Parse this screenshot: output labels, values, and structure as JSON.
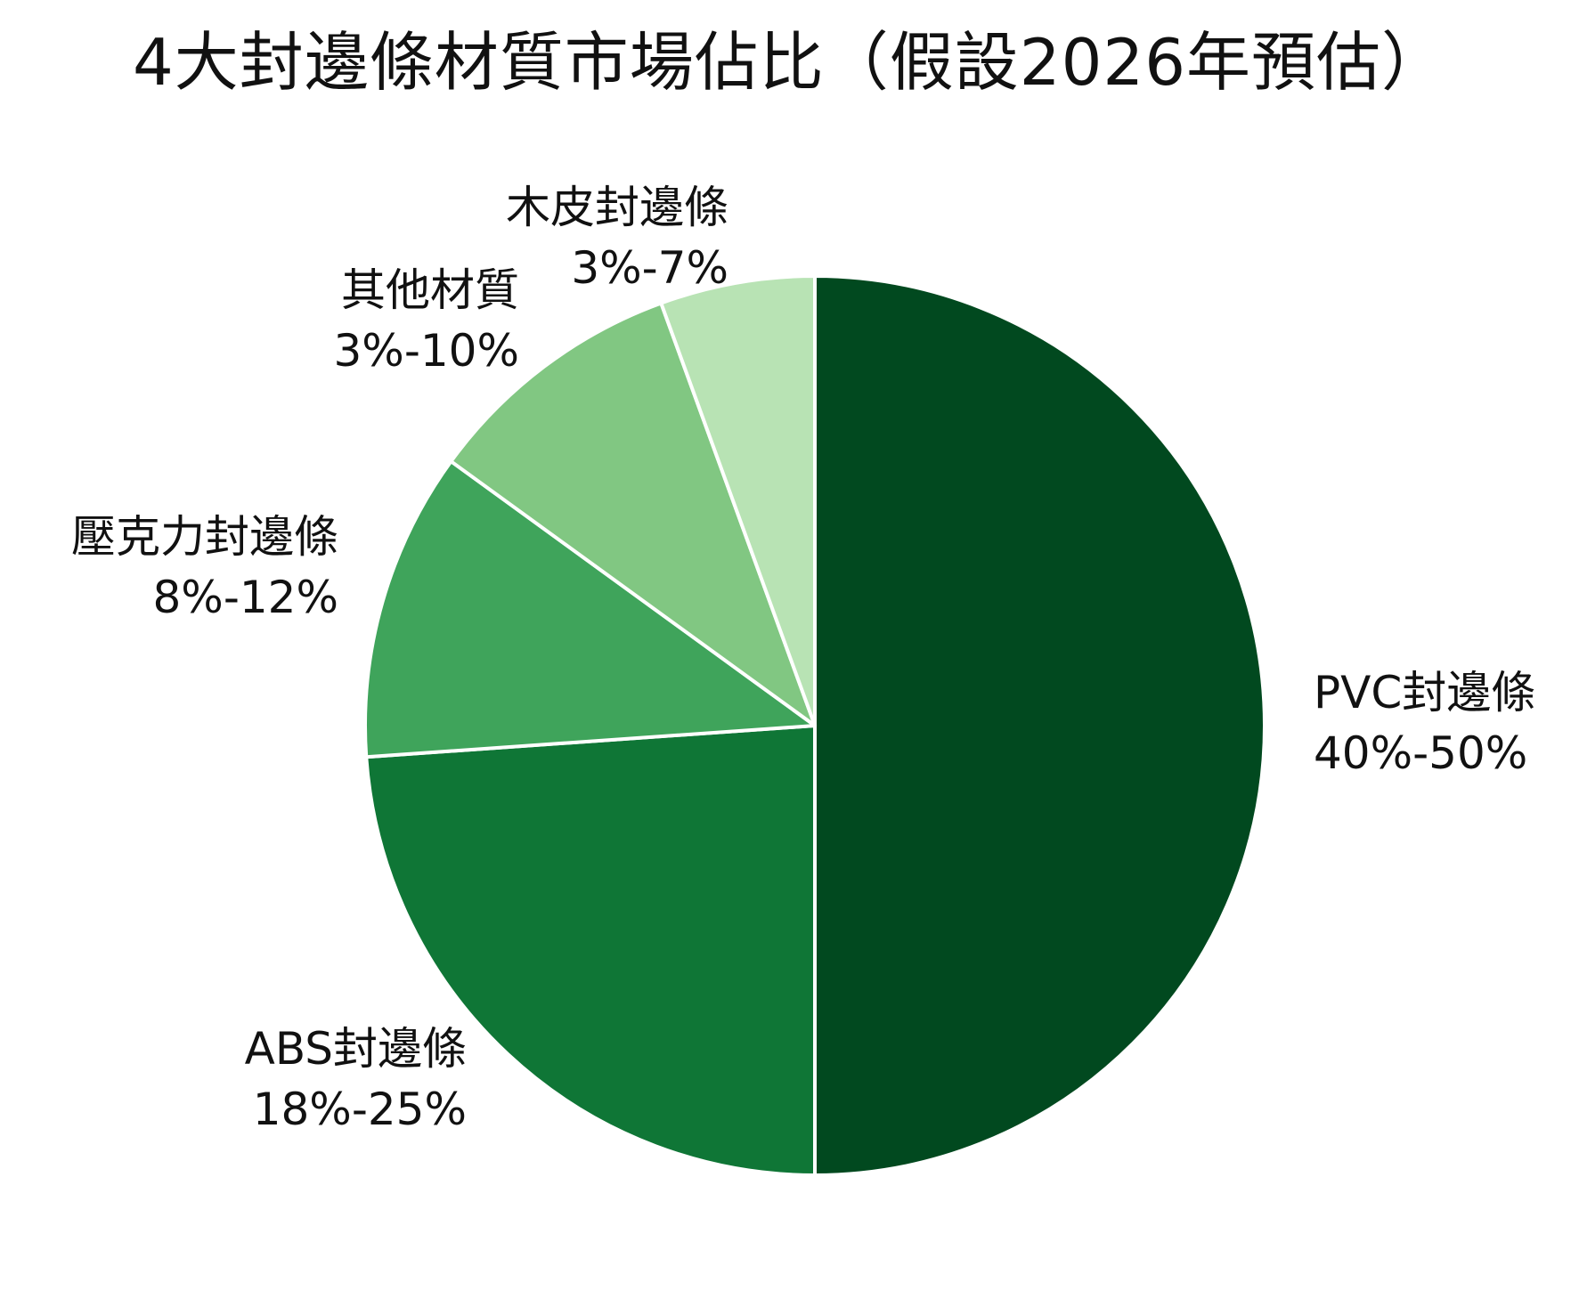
{
  "chart_data": {
    "type": "pie",
    "title": "4大封邊條材質市場佔比（假設2026年預估）",
    "slices": [
      {
        "name": "PVC封邊條",
        "range_label": "40%-50%",
        "value": 45,
        "color": "#01491f"
      },
      {
        "name": "ABS封邊條",
        "range_label": "18%-25%",
        "value": 21.5,
        "color": "#0f7636"
      },
      {
        "name": "壓克力封邊條",
        "range_label": "8%-12%",
        "value": 10,
        "color": "#3fa45b"
      },
      {
        "name": "其他材質",
        "range_label": "3%-10%",
        "value": 8.5,
        "color": "#81c782"
      },
      {
        "name": "木皮封邊條",
        "range_label": "3%-7%",
        "value": 5,
        "color": "#b8e3b4"
      }
    ],
    "start_angle": "12 o'clock",
    "direction": "clockwise",
    "legend": "none (labels beside slices)",
    "grid": false
  }
}
